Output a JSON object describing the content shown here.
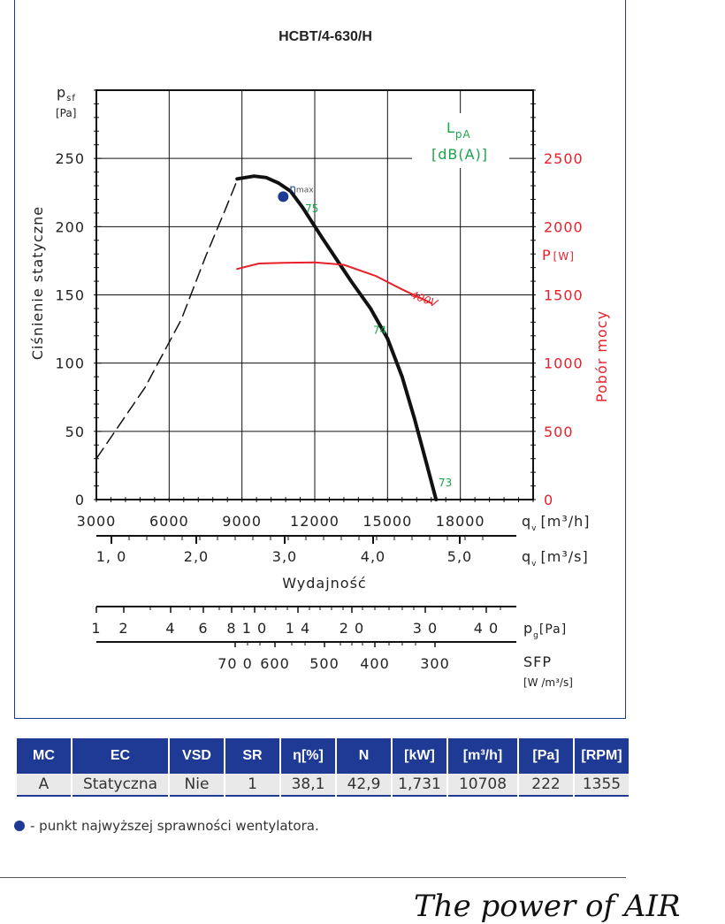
{
  "chart_data": {
    "type": "line",
    "title": "HCBT/4-630/H",
    "y_left": {
      "label": "Ciśnienie statyczne",
      "symbol": "p",
      "symbol_sub": "sf",
      "unit": "[Pa]",
      "ticks": [
        "0",
        "50",
        "100",
        "150",
        "200",
        "250"
      ],
      "range": [
        0,
        300
      ]
    },
    "y_right": {
      "label": "Pobór mocy",
      "symbol": "P",
      "unit": "[W]",
      "ticks": [
        "0",
        "500",
        "1000",
        "1500",
        "2000",
        "2500"
      ],
      "range": [
        0,
        3000
      ]
    },
    "x_axis": {
      "label": "Wydajność",
      "unit_symbol": "q",
      "unit_sub": "v",
      "unit_m3h": "[m³/h]",
      "unit_m3s": "[m³/s]",
      "ticks_m3h": [
        "3000",
        "6000",
        "9000",
        "12000",
        "15000",
        "18000"
      ],
      "ticks_m3s": [
        "1, 0",
        "2,0",
        "3,0",
        "4,0",
        "5,0"
      ],
      "range": [
        3000,
        21000
      ]
    },
    "pg_axis": {
      "symbol": "p",
      "sub": "g",
      "unit": "[Pa]",
      "ticks": [
        "1",
        "2",
        "4",
        "6",
        "8",
        "1 0",
        "1 4",
        "2 0",
        "3 0",
        "4 0"
      ]
    },
    "sfp_axis": {
      "label": "SFP",
      "unit": "[W /m³/s]",
      "ticks": [
        "70 0",
        "600",
        "500",
        "400",
        "300"
      ]
    },
    "sound_label": "L",
    "sound_label_sub": "pA",
    "sound_unit": "[dB(A)]",
    "series": [
      {
        "name": "",
        "style": "dashed",
        "color": "#111111",
        "points": [
          [
            3000,
            30
          ],
          [
            5000,
            82
          ],
          [
            6500,
            132
          ],
          [
            7500,
            178
          ],
          [
            8300,
            212
          ],
          [
            8800,
            234
          ]
        ]
      },
      {
        "name": "",
        "style": "solid",
        "color": "#111111",
        "points": [
          [
            8800,
            235
          ],
          [
            9500,
            237
          ],
          [
            10000,
            236
          ],
          [
            10500,
            232
          ],
          [
            11000,
            226
          ],
          [
            11500,
            214
          ],
          [
            12300,
            192
          ],
          [
            13500,
            160
          ],
          [
            14300,
            140
          ],
          [
            15000,
            118
          ],
          [
            15600,
            90
          ],
          [
            16100,
            60
          ],
          [
            16600,
            27
          ],
          [
            17000,
            0
          ]
        ]
      },
      {
        "name": "400V",
        "style": "solid",
        "color": "#e8202a",
        "axis": "right",
        "points": [
          [
            8800,
            1690
          ],
          [
            9700,
            1730
          ],
          [
            10700,
            1735
          ],
          [
            12000,
            1738
          ],
          [
            13200,
            1720
          ],
          [
            14500,
            1640
          ],
          [
            15600,
            1540
          ],
          [
            16800,
            1440
          ]
        ]
      }
    ],
    "eta_max": {
      "label": "η",
      "label_sub": "max",
      "x": 10700,
      "y": 222,
      "color": "#1e3a94"
    },
    "sound_annotations": [
      {
        "text": "75",
        "x": 11600,
        "y": 208
      },
      {
        "text": "74",
        "x": 14400,
        "y": 119
      },
      {
        "text": "73",
        "x": 17100,
        "y": 7
      }
    ]
  },
  "table": {
    "headers": [
      "MC",
      "EC",
      "VSD",
      "SR",
      "η[%]",
      "N",
      "[kW]",
      "[m³/h]",
      "[Pa]",
      "[RPM]"
    ],
    "row": [
      "A",
      "Statyczna",
      "Nie",
      "1",
      "38,1",
      "42,9",
      "1,731",
      "10708",
      "222",
      "1355"
    ]
  },
  "legend_text": "- punkt najwyższej sprawności wentylatora.",
  "brand": "The power of AIR",
  "colors": {
    "accent": "#1e3a94",
    "power": "#e8202a",
    "sound": "#1aa34a"
  }
}
